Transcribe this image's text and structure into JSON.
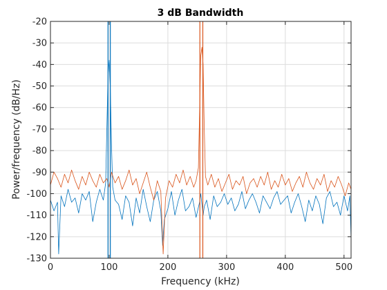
{
  "chart_data": {
    "type": "line",
    "title": "3 dB Bandwidth",
    "xlabel": "Frequency (kHz)",
    "ylabel": "Power/frequency (dB/Hz)",
    "xlim": [
      0,
      512
    ],
    "ylim": [
      -130,
      -20
    ],
    "xticks": [
      0,
      100,
      200,
      300,
      400,
      500
    ],
    "yticks": [
      -20,
      -30,
      -40,
      -50,
      -60,
      -70,
      -80,
      -90,
      -100,
      -110,
      -120,
      -130
    ],
    "grid": true,
    "colors": {
      "blue": "#0072BD",
      "orange": "#D95319",
      "grid": "#DCDCDC",
      "axis": "#262626"
    },
    "series": [
      {
        "color": "#0072BD",
        "x": [
          0,
          6,
          12,
          14,
          18,
          24,
          30,
          36,
          42,
          48,
          54,
          60,
          66,
          72,
          78,
          84,
          90,
          94,
          96,
          98,
          100,
          102,
          104,
          106,
          110,
          116,
          122,
          128,
          134,
          140,
          146,
          152,
          158,
          164,
          170,
          176,
          182,
          188,
          191,
          194,
          200,
          206,
          212,
          218,
          224,
          230,
          236,
          242,
          248,
          254,
          256,
          258,
          260,
          262,
          266,
          272,
          278,
          284,
          290,
          296,
          302,
          308,
          314,
          320,
          326,
          332,
          338,
          344,
          350,
          356,
          362,
          368,
          374,
          380,
          386,
          392,
          398,
          404,
          410,
          416,
          422,
          428,
          434,
          440,
          446,
          452,
          458,
          464,
          470,
          476,
          482,
          488,
          494,
          500,
          506,
          510,
          512
        ],
        "y": [
          -103,
          -108,
          -104,
          -128,
          -101,
          -106,
          -98,
          -104,
          -102,
          -109,
          -100,
          -103,
          -99,
          -113,
          -104,
          -98,
          -103,
          -95,
          -70,
          -45,
          -38,
          -52,
          -78,
          -97,
          -103,
          -105,
          -112,
          -101,
          -104,
          -115,
          -102,
          -109,
          -98,
          -106,
          -113,
          -103,
          -99,
          -108,
          -124,
          -112,
          -107,
          -99,
          -110,
          -103,
          -98,
          -108,
          -106,
          -102,
          -111,
          -104,
          -100,
          -105,
          -110,
          -106,
          -103,
          -112,
          -101,
          -106,
          -104,
          -100,
          -105,
          -102,
          -108,
          -105,
          -99,
          -107,
          -103,
          -100,
          -104,
          -109,
          -101,
          -104,
          -107,
          -102,
          -99,
          -105,
          -103,
          -101,
          -109,
          -104,
          -100,
          -106,
          -113,
          -103,
          -108,
          -101,
          -105,
          -114,
          -102,
          -99,
          -106,
          -104,
          -110,
          -101,
          -108,
          -101,
          -121
        ]
      },
      {
        "color": "#D95319",
        "x": [
          0,
          6,
          12,
          18,
          24,
          30,
          36,
          42,
          48,
          54,
          60,
          66,
          72,
          78,
          84,
          90,
          96,
          100,
          104,
          110,
          116,
          122,
          128,
          134,
          140,
          146,
          152,
          158,
          164,
          170,
          176,
          182,
          188,
          192,
          196,
          202,
          208,
          214,
          220,
          226,
          232,
          238,
          244,
          248,
          252,
          254,
          256,
          258,
          260,
          262,
          264,
          268,
          274,
          280,
          286,
          292,
          298,
          304,
          310,
          316,
          322,
          328,
          334,
          340,
          346,
          352,
          358,
          364,
          370,
          376,
          382,
          388,
          394,
          400,
          406,
          412,
          418,
          424,
          430,
          436,
          442,
          448,
          454,
          460,
          466,
          472,
          478,
          484,
          490,
          496,
          502,
          508,
          512
        ],
        "y": [
          -96,
          -90,
          -93,
          -97,
          -91,
          -95,
          -89,
          -94,
          -98,
          -92,
          -96,
          -90,
          -94,
          -97,
          -91,
          -95,
          -93,
          -97,
          -90,
          -95,
          -92,
          -98,
          -94,
          -89,
          -96,
          -93,
          -100,
          -95,
          -90,
          -97,
          -103,
          -94,
          -99,
          -128,
          -102,
          -94,
          -97,
          -91,
          -95,
          -89,
          -96,
          -92,
          -97,
          -94,
          -88,
          -62,
          -36,
          -32,
          -40,
          -70,
          -92,
          -96,
          -91,
          -97,
          -93,
          -99,
          -95,
          -91,
          -98,
          -94,
          -96,
          -92,
          -100,
          -95,
          -93,
          -97,
          -92,
          -96,
          -90,
          -98,
          -94,
          -97,
          -91,
          -96,
          -93,
          -99,
          -95,
          -92,
          -97,
          -90,
          -95,
          -98,
          -93,
          -96,
          -91,
          -99,
          -94,
          -97,
          -92,
          -96,
          -101,
          -95,
          -98
        ]
      }
    ],
    "markers": [
      {
        "x": 98,
        "color": "#0072BD"
      },
      {
        "x": 102,
        "color": "#0072BD"
      },
      {
        "x": 254.5,
        "color": "#D95319"
      },
      {
        "x": 259.5,
        "color": "#D95319"
      }
    ]
  }
}
